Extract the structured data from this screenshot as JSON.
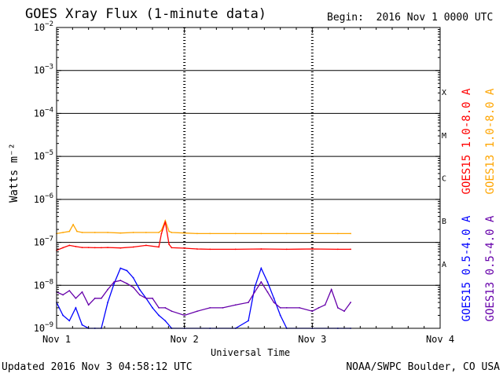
{
  "header": {
    "title": "GOES Xray Flux (1-minute data)",
    "begin_label": "Begin:",
    "begin_value": "2016 Nov 1 0000 UTC"
  },
  "footer": {
    "updated": "Updated 2016 Nov  3 04:58:12 UTC",
    "credit": "NOAA/SWPC Boulder, CO USA"
  },
  "chart_data": {
    "type": "line",
    "title": "GOES Xray Flux (1-minute data)",
    "xlabel": "Universal Time",
    "ylabel": "Watts m⁻²",
    "yscale": "log",
    "ylim": [
      1e-09,
      0.01
    ],
    "xlim": [
      0,
      3
    ],
    "x_tick_labels": [
      "Nov 1",
      "Nov 2",
      "Nov 3",
      "Nov 4"
    ],
    "y_tick_exponents": [
      -9,
      -8,
      -7,
      -6,
      -5,
      -4,
      -3,
      -2
    ],
    "flare_classes": [
      {
        "label": "A",
        "level": -7.5
      },
      {
        "label": "B",
        "level": -6.5
      },
      {
        "label": "C",
        "level": -5.5
      },
      {
        "label": "M",
        "level": -4.5
      },
      {
        "label": "X",
        "level": -3.5
      }
    ],
    "grid": true,
    "legend_position": "right",
    "colors": {
      "goes15_long": "#ff0000",
      "goes13_long": "#ffa500",
      "goes15_short": "#0000ff",
      "goes13_short": "#6600aa"
    },
    "series": [
      {
        "name": "GOES15 1.0-8.0 A",
        "key": "goes15_long",
        "x": [
          0,
          0.05,
          0.1,
          0.15,
          0.2,
          0.25,
          0.3,
          0.35,
          0.4,
          0.5,
          0.6,
          0.7,
          0.8,
          0.82,
          0.85,
          0.88,
          0.9,
          1.0,
          1.1,
          1.2,
          1.4,
          1.6,
          1.8,
          2.0,
          2.2,
          2.3
        ],
        "y": [
          6.5e-08,
          7.5e-08,
          8.5e-08,
          8e-08,
          7.6e-08,
          7.6e-08,
          7.5e-08,
          7.5e-08,
          7.6e-08,
          7.4e-08,
          7.8e-08,
          8.5e-08,
          7.8e-08,
          1.6e-07,
          3e-07,
          9e-08,
          7.5e-08,
          7.3e-08,
          7e-08,
          6.9e-08,
          6.9e-08,
          7e-08,
          6.9e-08,
          7e-08,
          6.9e-08,
          6.9e-08
        ]
      },
      {
        "name": "GOES13 1.0-8.0 A",
        "key": "goes13_long",
        "x": [
          0,
          0.05,
          0.1,
          0.13,
          0.16,
          0.2,
          0.3,
          0.4,
          0.5,
          0.6,
          0.7,
          0.8,
          0.82,
          0.85,
          0.88,
          0.9,
          1.0,
          1.1,
          1.2,
          1.4,
          1.6,
          1.8,
          2.0,
          2.2,
          2.3
        ],
        "y": [
          1.6e-07,
          1.7e-07,
          1.8e-07,
          2.6e-07,
          1.8e-07,
          1.7e-07,
          1.7e-07,
          1.7e-07,
          1.65e-07,
          1.7e-07,
          1.7e-07,
          1.7e-07,
          1.9e-07,
          3.2e-07,
          1.8e-07,
          1.7e-07,
          1.65e-07,
          1.6e-07,
          1.6e-07,
          1.6e-07,
          1.6e-07,
          1.6e-07,
          1.6e-07,
          1.6e-07,
          1.6e-07
        ]
      },
      {
        "name": "GOES15 0.5-4.0 A",
        "key": "goes15_short",
        "x": [
          0,
          0.05,
          0.1,
          0.15,
          0.2,
          0.25,
          0.3,
          0.35,
          0.4,
          0.45,
          0.5,
          0.55,
          0.6,
          0.65,
          0.7,
          0.75,
          0.8,
          0.85,
          0.9,
          1.0,
          1.2,
          1.4,
          1.5,
          1.55,
          1.6,
          1.65,
          1.7,
          1.75,
          1.8,
          2.0,
          2.2,
          2.3
        ],
        "y": [
          4e-09,
          2e-09,
          1.5e-09,
          3e-09,
          1.2e-09,
          1e-09,
          1e-09,
          1e-09,
          4e-09,
          1.1e-08,
          2.5e-08,
          2.2e-08,
          1.5e-08,
          8e-09,
          5e-09,
          3e-09,
          2e-09,
          1.5e-09,
          1e-09,
          1e-09,
          1e-09,
          1e-09,
          1.5e-09,
          9e-09,
          2.5e-08,
          1.2e-08,
          5e-09,
          2e-09,
          1e-09,
          1e-09,
          1e-09,
          1e-09
        ]
      },
      {
        "name": "GOES13 0.5-4.0 A",
        "key": "goes13_short",
        "x": [
          0,
          0.05,
          0.1,
          0.15,
          0.2,
          0.25,
          0.3,
          0.35,
          0.4,
          0.45,
          0.5,
          0.55,
          0.6,
          0.65,
          0.7,
          0.75,
          0.8,
          0.85,
          0.9,
          1.0,
          1.1,
          1.2,
          1.3,
          1.4,
          1.5,
          1.55,
          1.6,
          1.65,
          1.7,
          1.75,
          1.8,
          1.9,
          2.0,
          2.05,
          2.1,
          2.15,
          2.2,
          2.25,
          2.3
        ],
        "y": [
          7e-09,
          6e-09,
          7.5e-09,
          5e-09,
          7e-09,
          3.5e-09,
          5e-09,
          5e-09,
          8e-09,
          1.2e-08,
          1.3e-08,
          1.1e-08,
          9e-09,
          6e-09,
          5e-09,
          5e-09,
          3e-09,
          3e-09,
          2.5e-09,
          2e-09,
          2.5e-09,
          3e-09,
          3e-09,
          3.5e-09,
          4e-09,
          7e-09,
          1.2e-08,
          7e-09,
          4e-09,
          3e-09,
          3e-09,
          3e-09,
          2.5e-09,
          3e-09,
          3.5e-09,
          8e-09,
          3e-09,
          2.5e-09,
          4e-09
        ]
      }
    ]
  }
}
